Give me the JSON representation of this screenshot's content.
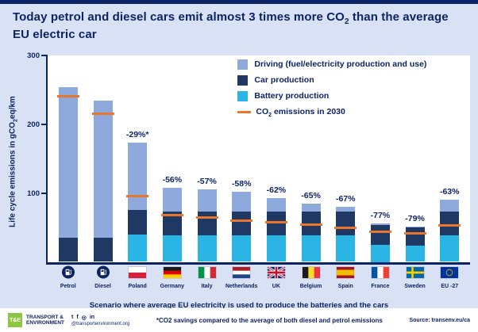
{
  "accent_colors": {
    "background": "#d9e2f4",
    "navy": "#0d2464",
    "driving": "#8ea9db",
    "car_production": "#1f3864",
    "battery_production": "#2ab5e5",
    "line_2030": "#e8762c",
    "logo_green": "#8dc63f"
  },
  "title": {
    "pre": "Today petrol and diesel cars emit almost 3 times more CO",
    "sub": "2",
    "post": " than the average EU electric car"
  },
  "y_axis": {
    "label_pre": "Life cycle emissions in gCO",
    "label_sub": "2",
    "label_post": "eq/km",
    "ticks": [
      100,
      200,
      300
    ]
  },
  "legend": [
    {
      "label": "Driving (fuel/electricity production and use)",
      "color": "#8ea9db",
      "type": "box"
    },
    {
      "label": "Car production",
      "color": "#1f3864",
      "type": "box"
    },
    {
      "label": "Battery production",
      "color": "#2ab5e5",
      "type": "box"
    },
    {
      "label_pre": "CO",
      "label_sub": "2",
      "label_post": " emissions in 2030",
      "color": "#e8762c",
      "type": "line"
    }
  ],
  "chart_data": {
    "type": "bar",
    "stacked": true,
    "ylim": [
      0,
      300
    ],
    "categories": [
      {
        "label": "Petrol",
        "flag": "petrol"
      },
      {
        "label": "Diesel",
        "flag": "diesel"
      },
      {
        "label": "Poland",
        "flag": "poland"
      },
      {
        "label": "Germany",
        "flag": "germany"
      },
      {
        "label": "Italy",
        "flag": "italy"
      },
      {
        "label": "Netherlands",
        "flag": "netherlands"
      },
      {
        "label": "UK",
        "flag": "uk"
      },
      {
        "label": "Belgium",
        "flag": "belgium"
      },
      {
        "label": "Spain",
        "flag": "spain"
      },
      {
        "label": "France",
        "flag": "france"
      },
      {
        "label": "Sweden",
        "flag": "sweden"
      },
      {
        "label": "EU -27",
        "flag": "eu"
      }
    ],
    "series": [
      {
        "name": "Driving (fuel/electricity production and use)",
        "color": "#8ea9db",
        "values": [
          218,
          199,
          98,
          34,
          32,
          29,
          20,
          12,
          7,
          3,
          1,
          17
        ]
      },
      {
        "name": "Car production",
        "color": "#1f3864",
        "values": [
          35,
          35,
          35,
          35,
          35,
          35,
          35,
          35,
          35,
          28,
          26,
          35
        ]
      },
      {
        "name": "Battery production",
        "color": "#2ab5e5",
        "values": [
          0,
          0,
          40,
          38,
          38,
          38,
          38,
          38,
          38,
          25,
          24,
          38
        ]
      }
    ],
    "totals": [
      253,
      234,
      173,
      107,
      105,
      102,
      93,
      85,
      80,
      56,
      51,
      90
    ],
    "markers_2030": [
      240,
      215,
      95,
      68,
      64,
      60,
      58,
      54,
      50,
      44,
      41,
      53
    ],
    "markers_2030_label": "CO2 emissions in 2030",
    "savings": [
      null,
      null,
      "-29%*",
      "-56%",
      "-57%",
      "-58%",
      "-62%",
      "-65%",
      "-67%",
      "-77%",
      "-79%",
      "-63%"
    ]
  },
  "scenario": "Scenario where  average EU electricity is used to produce the batteries and the cars",
  "footer": {
    "logo_line1": "TRANSPORT &",
    "logo_line2": "ENVIRONMENT",
    "logo_mark": "T&E",
    "handle": "@transportenvironment.org",
    "footnote": "*CO2 savings compared to the average of both diesel and petrol emissions",
    "source": "Source: transenv.eu/ca"
  }
}
